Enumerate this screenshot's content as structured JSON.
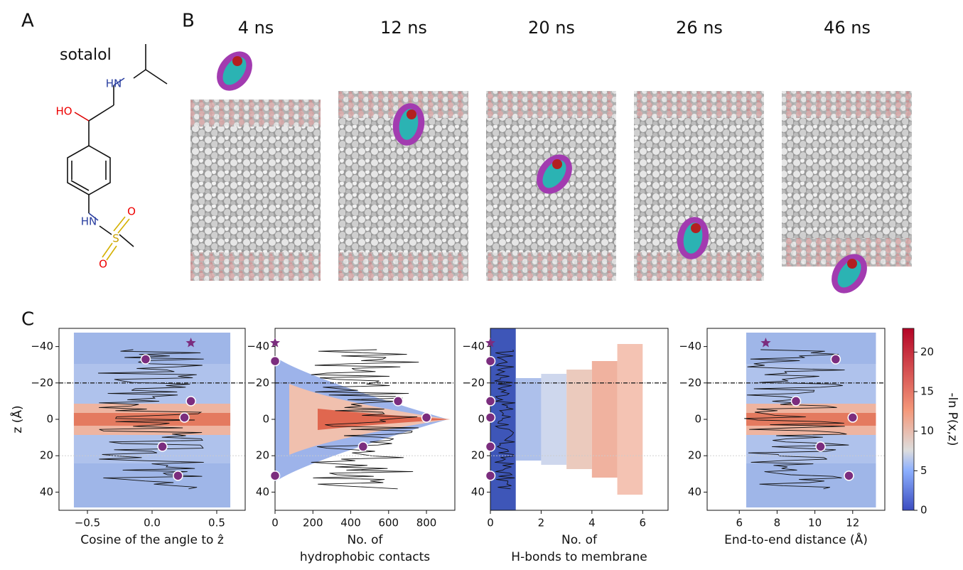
{
  "panels": [
    "A",
    "B",
    "C"
  ],
  "molecule": {
    "name": "sotalol",
    "atoms": [
      "HN",
      "HO",
      "HN",
      "S",
      "O",
      "O"
    ]
  },
  "snapshots": [
    "4 ns",
    "12 ns",
    "20 ns",
    "26 ns",
    "46 ns"
  ],
  "chart_data": [
    {
      "type": "heatmap",
      "ylabel": "z (Å)",
      "xlabel": [
        "Cosine of the angle to ẑ"
      ],
      "xlim": [
        -0.72,
        0.72
      ],
      "xticks": [
        {
          "value": -0.5,
          "label": "−0.5"
        },
        {
          "value": 0,
          "label": "0.0"
        },
        0.5
      ],
      "ylim": [
        -50,
        50
      ],
      "y_inverted": true,
      "yticks": [
        {
          "value": -40,
          "label": "−40"
        },
        {
          "value": -20,
          "label": "−20"
        },
        0,
        20,
        40
      ],
      "hlines": [
        -20,
        20
      ],
      "color": "#7b2d7e",
      "start": {
        "x": 0.3,
        "y": -42
      },
      "points": {
        "x": [
          -0.05,
          0.3,
          0.25,
          0.08,
          0.2
        ],
        "y": [
          -33,
          -10,
          -1,
          15,
          31
        ]
      }
    },
    {
      "type": "heatmap",
      "xlabel": [
        "No. of",
        "hydrophobic contacts"
      ],
      "xlim": [
        0,
        950
      ],
      "xticks": [
        0,
        200,
        400,
        600,
        800
      ],
      "ylim": [
        -50,
        50
      ],
      "y_inverted": true,
      "yticks": [
        {
          "value": -40,
          "label": "−40"
        },
        {
          "value": -20,
          "label": "−20"
        },
        0,
        20,
        40
      ],
      "hlines": [
        -20,
        20
      ],
      "color": "#7b2d7e",
      "start": {
        "x": 0,
        "y": -42
      },
      "points": {
        "x": [
          0,
          650,
          800,
          465,
          0
        ],
        "y": [
          -32,
          -10,
          -1,
          15,
          31
        ]
      }
    },
    {
      "type": "heatmap",
      "xlabel": [
        "No. of",
        "H-bonds to membrane"
      ],
      "xlim": [
        0,
        7
      ],
      "xticks": [
        0,
        2,
        4,
        6
      ],
      "ylim": [
        -50,
        50
      ],
      "y_inverted": true,
      "yticks": [
        {
          "value": -40,
          "label": "−40"
        },
        {
          "value": -20,
          "label": "−20"
        },
        0,
        20,
        40
      ],
      "hlines": [
        -20,
        20
      ],
      "color": "#7b2d7e",
      "start": {
        "x": 0,
        "y": -42
      },
      "points": {
        "x": [
          0,
          0,
          0,
          0,
          0
        ],
        "y": [
          -32,
          -10,
          -1,
          15,
          31
        ]
      }
    },
    {
      "type": "heatmap",
      "xlabel": [
        "End-to-end distance (Å)"
      ],
      "xlim": [
        4.3,
        13.7
      ],
      "xticks": [
        6,
        8,
        10,
        12
      ],
      "ylim": [
        -50,
        50
      ],
      "y_inverted": true,
      "yticks": [
        {
          "value": -40,
          "label": "−40"
        },
        {
          "value": -20,
          "label": "−20"
        },
        0,
        20,
        40
      ],
      "hlines": [
        -20,
        20
      ],
      "color": "#7b2d7e",
      "start": {
        "x": 7.4,
        "y": -42
      },
      "points": {
        "x": [
          11.1,
          9,
          12,
          10.3,
          11.8
        ],
        "y": [
          -33,
          -10,
          -1,
          15,
          31
        ]
      }
    }
  ],
  "colorbar": {
    "label": "-ln P(x,z)",
    "lim": [
      0,
      23
    ],
    "ticks": [
      0,
      5,
      10,
      15,
      20
    ]
  }
}
